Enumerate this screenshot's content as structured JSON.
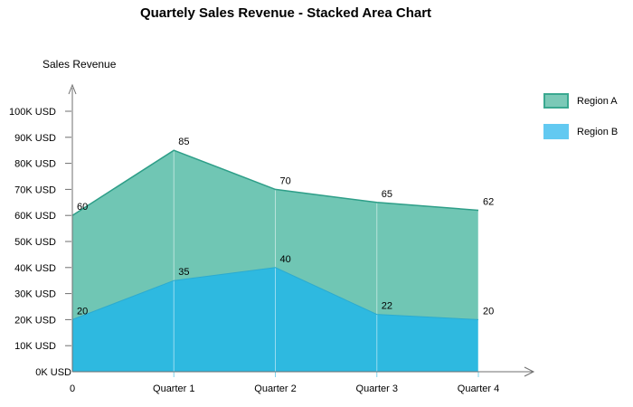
{
  "chart_data": {
    "type": "area",
    "stacked_display": true,
    "title": "Quartely Sales Revenue - Stacked Area Chart",
    "ylabel": "Sales Revenue",
    "xlabel": "",
    "categories": [
      "0",
      "Quarter 1",
      "Quarter 2",
      "Quarter 3",
      "Quarter 4"
    ],
    "series": [
      {
        "name": "Region A",
        "values": [
          60,
          85,
          70,
          65,
          62
        ],
        "fill_color": "#70C6B4",
        "line_color": "#2E9E88",
        "legend_swatch_color": "#7BC9B7",
        "legend_swatch_border": "#3AA890"
      },
      {
        "name": "Region B",
        "values": [
          20,
          35,
          40,
          22,
          20
        ],
        "fill_color": "#2EB9E0",
        "line_color": "#2BABD0",
        "legend_swatch_color": "#62C9F1",
        "legend_swatch_border": "#62C9F1"
      }
    ],
    "y_tick_values": [
      0,
      10,
      20,
      30,
      40,
      50,
      60,
      70,
      80,
      90,
      100
    ],
    "y_tick_labels": [
      "0K USD",
      "10K USD",
      "20K USD",
      "30K USD",
      "40K USD",
      "50K USD",
      "60K USD",
      "70K USD",
      "80K USD",
      "90K USD",
      "100K USD"
    ],
    "ylim": [
      0,
      110
    ],
    "legend_position": "right",
    "grid": "vertical white gridlines over areas at category positions",
    "colors": {
      "axis": "#6F6F6F",
      "label_text": "#000000",
      "gridline_over_area": "rgba(255,255,255,0.5)",
      "x_tick_below_axis": "#7FD4EE",
      "background": "#FFFFFF"
    }
  }
}
